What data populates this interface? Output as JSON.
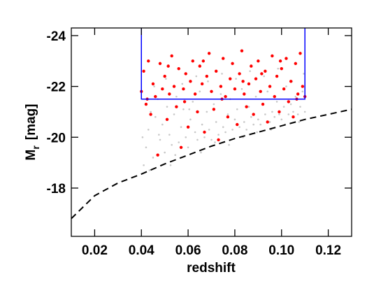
{
  "chart_data": {
    "type": "scatter",
    "xlabel": "redshift",
    "ylabel": {
      "symbol": "M",
      "subscript": "r",
      "unit": "[mag]"
    },
    "xlim": [
      0.01,
      0.13
    ],
    "ylim": [
      -16.1,
      -24.3
    ],
    "xticks": [
      0.02,
      0.04,
      0.06,
      0.08,
      {
        "value": 0.1,
        "label": "0.10"
      },
      0.12
    ],
    "yticks": [
      -24,
      -22,
      -20,
      -18
    ],
    "series": [
      {
        "type": "scatter",
        "color": "#c8c8c8",
        "size": 1.3,
        "x": [
          0.041,
          0.042,
          0.043,
          0.044,
          0.045,
          0.046,
          0.047,
          0.048,
          0.049,
          0.05,
          0.051,
          0.052,
          0.053,
          0.054,
          0.055,
          0.056,
          0.057,
          0.058,
          0.059,
          0.06,
          0.061,
          0.062,
          0.063,
          0.064,
          0.065,
          0.066,
          0.067,
          0.068,
          0.069,
          0.07,
          0.071,
          0.072,
          0.073,
          0.074,
          0.075,
          0.076,
          0.077,
          0.078,
          0.079,
          0.08,
          0.081,
          0.082,
          0.083,
          0.084,
          0.085,
          0.086,
          0.087,
          0.088,
          0.089,
          0.09,
          0.091,
          0.092,
          0.093,
          0.094,
          0.095,
          0.096,
          0.097,
          0.098,
          0.099,
          0.1,
          0.101,
          0.102,
          0.103,
          0.104,
          0.105,
          0.106,
          0.107,
          0.108,
          0.109,
          0.11,
          0.0405,
          0.0435,
          0.0455,
          0.0475,
          0.0505,
          0.0525,
          0.0545,
          0.0575,
          0.0605,
          0.0635,
          0.0655,
          0.0685,
          0.0715,
          0.0745,
          0.0775,
          0.0805,
          0.0835,
          0.0865,
          0.0895,
          0.0925,
          0.0955,
          0.0985,
          0.1015,
          0.1045,
          0.1075,
          0.1095
        ],
        "values": [
          -18.9,
          -19.6,
          -20.3,
          -21.0,
          -19.2,
          -20.8,
          -21.5,
          -19.9,
          -20.5,
          -19.4,
          -21.2,
          -20.1,
          -19.7,
          -20.9,
          -21.6,
          -19.8,
          -20.4,
          -21.1,
          -20.0,
          -19.6,
          -20.7,
          -21.4,
          -20.2,
          -19.9,
          -21.8,
          -20.5,
          -20.0,
          -21.0,
          -20.3,
          -19.9,
          -21.3,
          -20.6,
          -20.1,
          -21.7,
          -20.4,
          -20.2,
          -20.9,
          -21.5,
          -20.3,
          -20.7,
          -21.1,
          -20.4,
          -21.9,
          -20.6,
          -20.3,
          -21.2,
          -20.8,
          -20.5,
          -21.6,
          -20.7,
          -20.5,
          -21.3,
          -20.9,
          -21.8,
          -20.6,
          -21.0,
          -20.8,
          -21.4,
          -20.9,
          -20.7,
          -21.2,
          -22.0,
          -20.9,
          -21.3,
          -21.0,
          -21.6,
          -20.9,
          -21.2,
          -21.8,
          -21.0,
          -20.0,
          -18.7,
          -22.0,
          -20.1,
          -22.3,
          -18.9,
          -19.3,
          -22.1,
          -21.1,
          -22.4,
          -19.4,
          -22.2,
          -19.8,
          -22.5,
          -19.7,
          -22.3,
          -20.0,
          -22.6,
          -20.2,
          -22.4,
          -20.3,
          -22.7,
          -20.5,
          -22.2,
          -20.6,
          -22.5
        ]
      },
      {
        "type": "scatter",
        "color": "#ff0000",
        "size": 2.2,
        "x": [
          0.04,
          0.041,
          0.042,
          0.043,
          0.044,
          0.045,
          0.046,
          0.047,
          0.048,
          0.049,
          0.05,
          0.051,
          0.052,
          0.053,
          0.054,
          0.055,
          0.056,
          0.057,
          0.058,
          0.059,
          0.06,
          0.061,
          0.062,
          0.063,
          0.064,
          0.065,
          0.066,
          0.067,
          0.068,
          0.069,
          0.07,
          0.071,
          0.072,
          0.073,
          0.074,
          0.075,
          0.076,
          0.077,
          0.078,
          0.079,
          0.08,
          0.081,
          0.082,
          0.083,
          0.084,
          0.085,
          0.086,
          0.087,
          0.088,
          0.089,
          0.09,
          0.091,
          0.092,
          0.093,
          0.094,
          0.095,
          0.096,
          0.097,
          0.098,
          0.099,
          0.1,
          0.101,
          0.102,
          0.103,
          0.104,
          0.105,
          0.106,
          0.107,
          0.108,
          0.109,
          0.11,
          0.0425,
          0.0515,
          0.0585,
          0.0665,
          0.0745,
          0.0835,
          0.0915,
          0.0995,
          0.1065
        ],
        "values": [
          -21.8,
          -22.6,
          -21.3,
          -23.0,
          -20.9,
          -22.1,
          -21.6,
          -19.3,
          -22.9,
          -21.9,
          -22.4,
          -20.7,
          -21.7,
          -23.2,
          -22.0,
          -21.2,
          -22.7,
          -19.6,
          -21.9,
          -22.5,
          -20.4,
          -22.2,
          -23.0,
          -21.7,
          -21.0,
          -22.8,
          -22.1,
          -20.2,
          -22.4,
          -23.3,
          -21.8,
          -21.1,
          -22.6,
          -19.9,
          -22.0,
          -23.1,
          -21.6,
          -20.8,
          -22.3,
          -22.9,
          -21.9,
          -20.5,
          -22.5,
          -23.4,
          -21.7,
          -21.2,
          -22.1,
          -22.8,
          -20.9,
          -22.3,
          -23.0,
          -21.8,
          -21.3,
          -22.6,
          -20.6,
          -22.0,
          -23.2,
          -21.6,
          -22.4,
          -21.0,
          -22.7,
          -21.9,
          -23.1,
          -21.4,
          -22.2,
          -20.8,
          -22.9,
          -21.7,
          -23.3,
          -22.0,
          -21.6,
          -21.5,
          -22.8,
          -21.4,
          -23.0,
          -21.5,
          -22.2,
          -22.5,
          -23.0,
          -21.5
        ]
      },
      {
        "type": "line",
        "color": "#000000",
        "dash": "9,6",
        "x": [
          0.01,
          0.02,
          0.03,
          0.04,
          0.05,
          0.06,
          0.07,
          0.08,
          0.09,
          0.1,
          0.11,
          0.12,
          0.13
        ],
        "values": [
          -16.8,
          -17.7,
          -18.2,
          -18.55,
          -18.95,
          -19.3,
          -19.65,
          -19.95,
          -20.2,
          -20.45,
          -20.7,
          -20.9,
          -21.1
        ]
      }
    ],
    "box": {
      "x": [
        0.04,
        0.11
      ],
      "ymin": -21.5,
      "color": "#0000ff"
    }
  }
}
